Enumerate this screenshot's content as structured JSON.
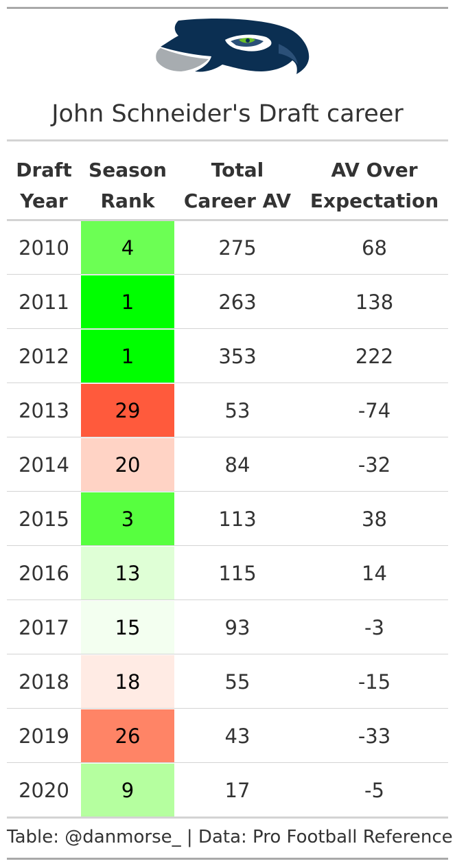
{
  "title": "John Schneider's Draft career",
  "logo_icon": "seattle-seahawks-logo",
  "columns": [
    {
      "line1": "Draft",
      "line2": "Year"
    },
    {
      "line1": "Season",
      "line2": "Rank"
    },
    {
      "line1": "Total",
      "line2": "Career AV"
    },
    {
      "line1": "AV Over",
      "line2": "Expectation"
    }
  ],
  "rows": [
    {
      "year": "2010",
      "rank": "4",
      "total_av": "275",
      "av_over": "68",
      "color": "#6cff54"
    },
    {
      "year": "2011",
      "rank": "1",
      "total_av": "263",
      "av_over": "138",
      "color": "#00ff00"
    },
    {
      "year": "2012",
      "rank": "1",
      "total_av": "353",
      "av_over": "222",
      "color": "#00ff00"
    },
    {
      "year": "2013",
      "rank": "29",
      "total_av": "53",
      "av_over": "-74",
      "color": "#ff5a3c"
    },
    {
      "year": "2014",
      "rank": "20",
      "total_av": "84",
      "av_over": "-32",
      "color": "#ffd3c5"
    },
    {
      "year": "2015",
      "rank": "3",
      "total_av": "113",
      "av_over": "38",
      "color": "#57ff3f"
    },
    {
      "year": "2016",
      "rank": "13",
      "total_av": "115",
      "av_over": "14",
      "color": "#dfffd6"
    },
    {
      "year": "2017",
      "rank": "15",
      "total_av": "93",
      "av_over": "-3",
      "color": "#f3fff0"
    },
    {
      "year": "2018",
      "rank": "18",
      "total_av": "55",
      "av_over": "-15",
      "color": "#ffebe4"
    },
    {
      "year": "2019",
      "rank": "26",
      "total_av": "43",
      "av_over": "-33",
      "color": "#ff8466"
    },
    {
      "year": "2020",
      "rank": "9",
      "total_av": "17",
      "av_over": "-5",
      "color": "#b5ff9f"
    }
  ],
  "footer": "Table: @danmorse_ | Data: Pro Football Reference",
  "chart_data": {
    "type": "table",
    "title": "John Schneider's Draft career",
    "columns": [
      "Draft Year",
      "Season Rank",
      "Total Career AV",
      "AV Over Expectation"
    ],
    "rows": [
      [
        2010,
        4,
        275,
        68
      ],
      [
        2011,
        1,
        263,
        138
      ],
      [
        2012,
        1,
        353,
        222
      ],
      [
        2013,
        29,
        53,
        -74
      ],
      [
        2014,
        20,
        84,
        -32
      ],
      [
        2015,
        3,
        113,
        38
      ],
      [
        2016,
        13,
        115,
        14
      ],
      [
        2017,
        15,
        93,
        -3
      ],
      [
        2018,
        18,
        55,
        -15
      ],
      [
        2019,
        26,
        43,
        -33
      ],
      [
        2020,
        9,
        17,
        -5
      ]
    ]
  }
}
